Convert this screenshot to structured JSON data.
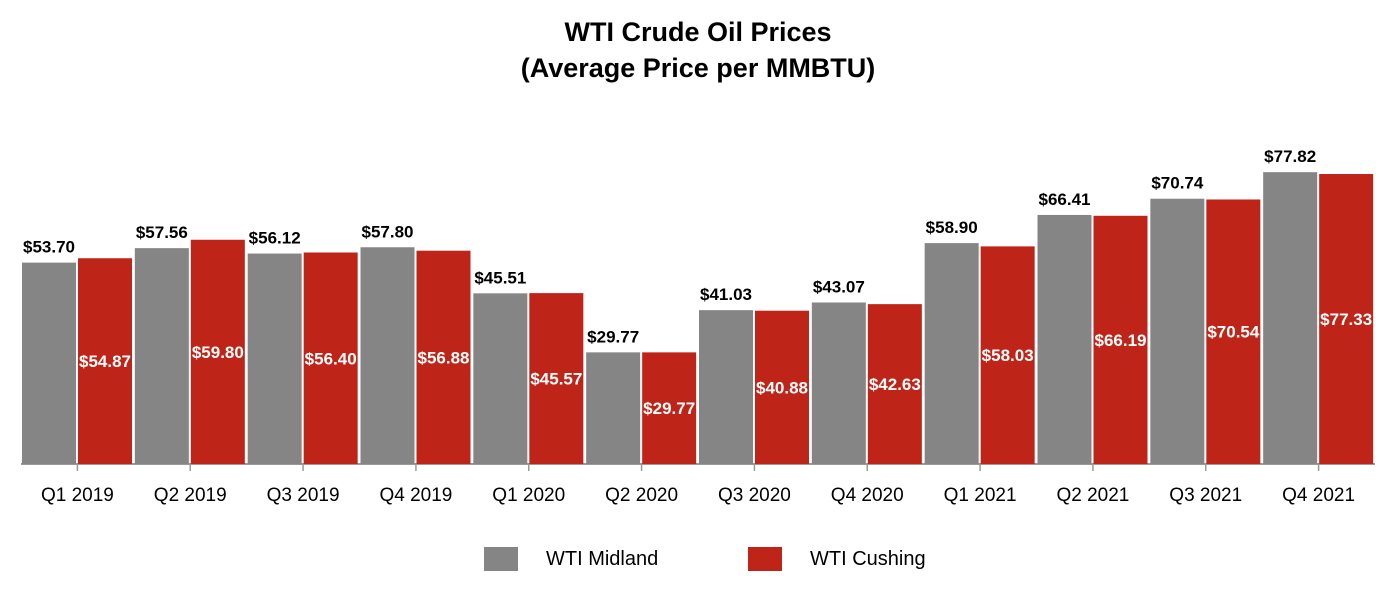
{
  "colors": {
    "midland": "#858585",
    "cushing": "#bf2418",
    "axis": "#9a9a9a"
  },
  "chart_data": {
    "type": "bar",
    "title": "WTI Crude Oil Prices",
    "subtitle": "(Average Price per MMBTU)",
    "xlabel": "",
    "ylabel": "",
    "ylim": [
      0,
      90
    ],
    "grid": false,
    "legend_position": "bottom",
    "categories": [
      "Q1 2019",
      "Q2 2019",
      "Q3 2019",
      "Q4 2019",
      "Q1 2020",
      "Q2 2020",
      "Q3 2020",
      "Q4 2020",
      "Q1 2021",
      "Q2 2021",
      "Q3 2021",
      "Q4 2021"
    ],
    "series": [
      {
        "name": "WTI Midland",
        "values": [
          53.7,
          57.56,
          56.12,
          57.8,
          45.51,
          29.77,
          41.03,
          43.07,
          58.9,
          66.41,
          70.74,
          77.82
        ],
        "labels": [
          "$53.70",
          "$57.56",
          "$56.12",
          "$57.80",
          "$45.51",
          "$29.77",
          "$41.03",
          "$43.07",
          "$58.90",
          "$66.41",
          "$70.74",
          "$77.82"
        ]
      },
      {
        "name": "WTI Cushing",
        "values": [
          54.87,
          59.8,
          56.4,
          56.88,
          45.57,
          29.77,
          40.88,
          42.63,
          58.03,
          66.19,
          70.54,
          77.33
        ],
        "labels": [
          "$54.87",
          "$59.80",
          "$56.40",
          "$56.88",
          "$45.57",
          "$29.77",
          "$40.88",
          "$42.63",
          "$58.03",
          "$66.19",
          "$70.54",
          "$77.33"
        ]
      }
    ]
  }
}
